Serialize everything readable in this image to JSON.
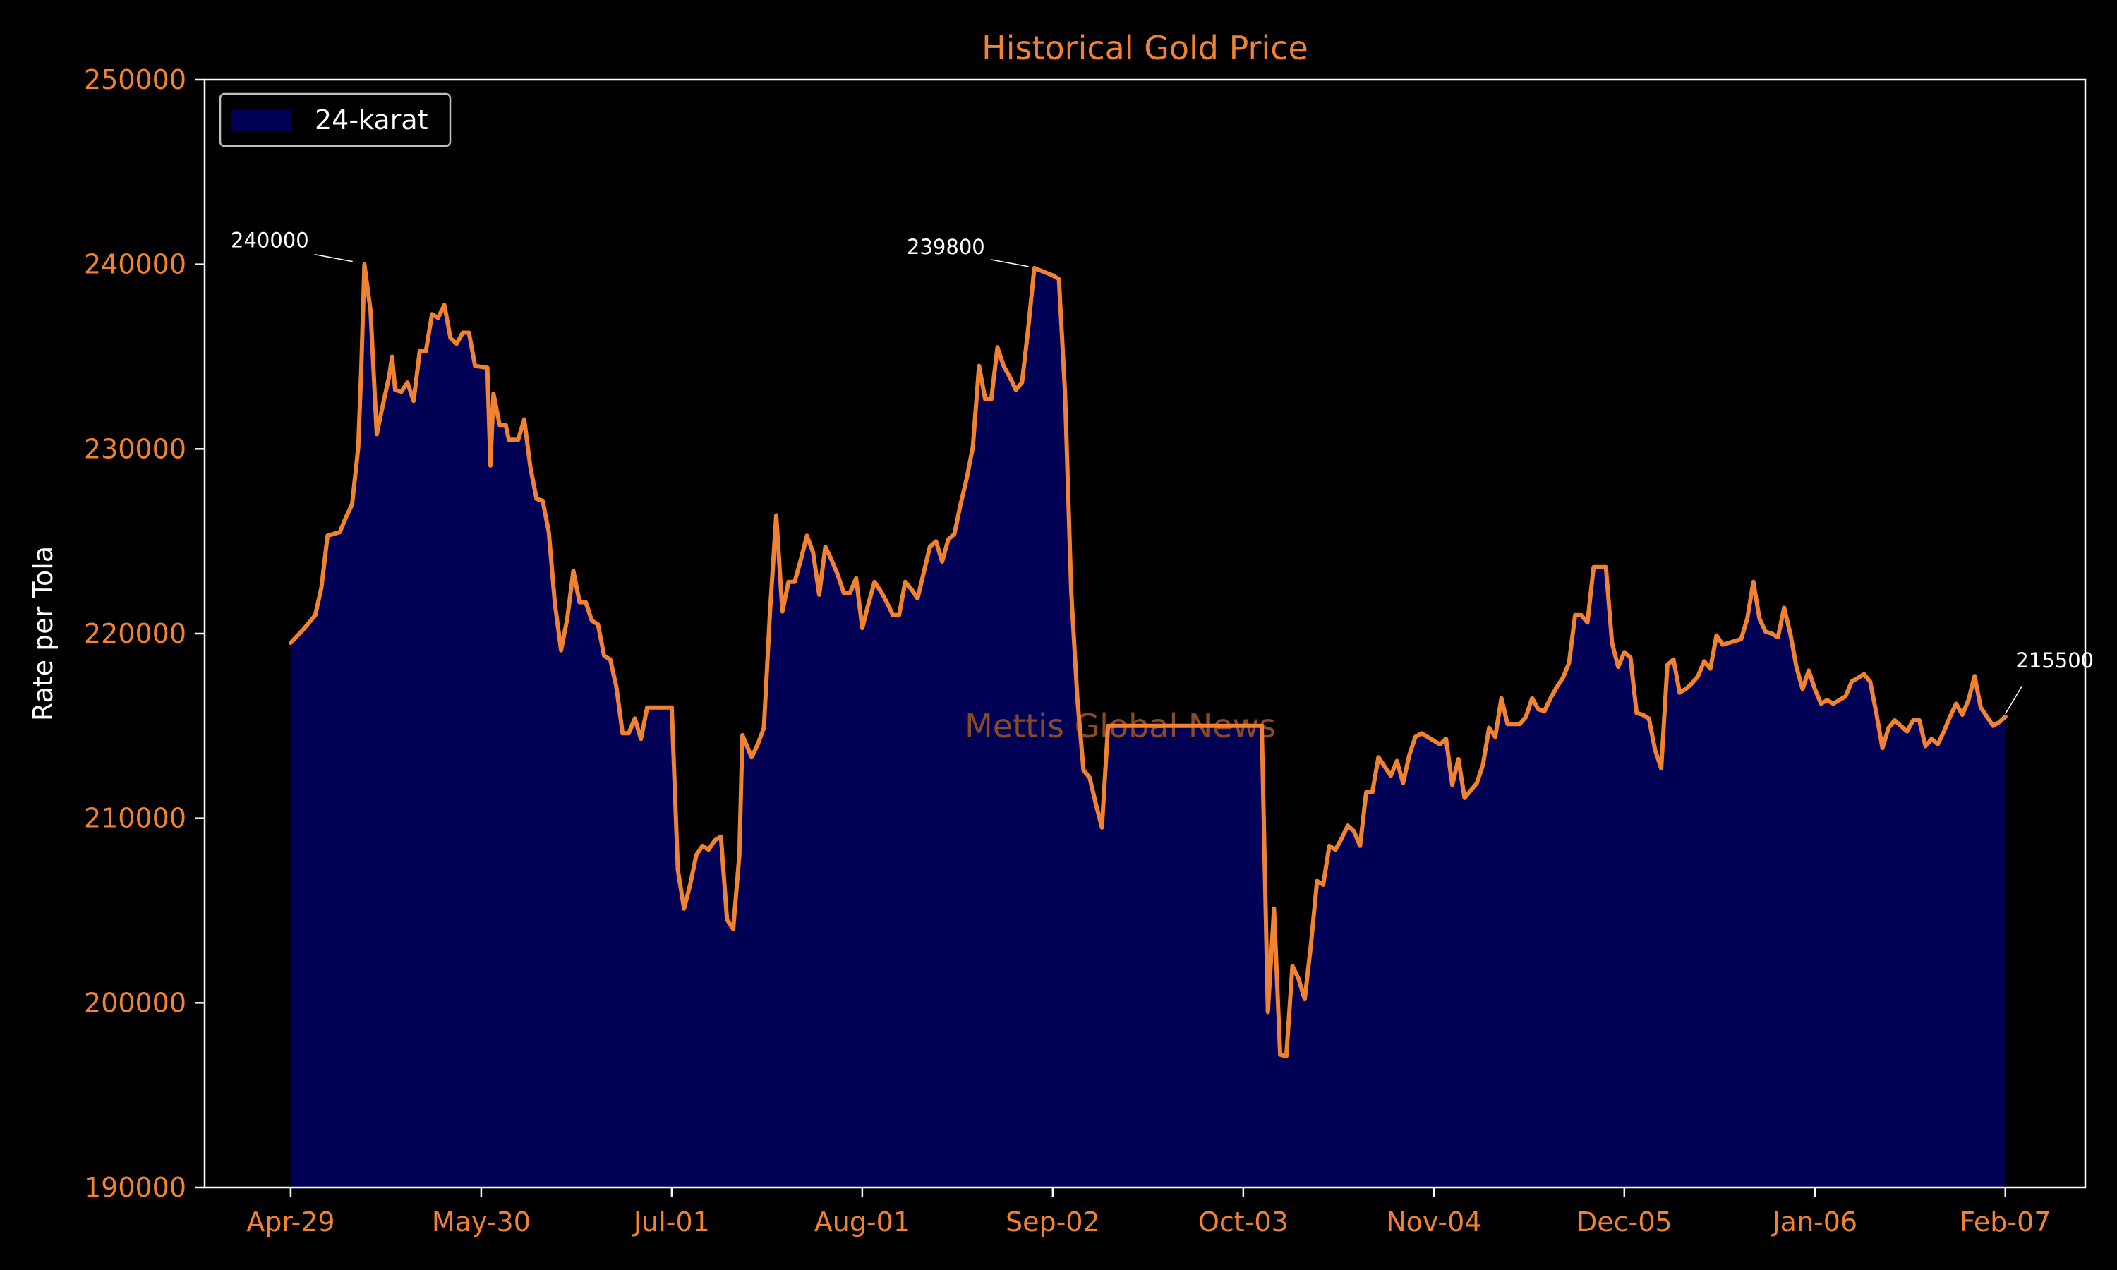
{
  "chart_data": {
    "type": "area",
    "title": "Historical Gold Price",
    "ylabel": "Rate per Tola",
    "xlabel": "",
    "ylim": [
      190000,
      250000
    ],
    "y_ticks": [
      190000,
      200000,
      210000,
      220000,
      230000,
      240000,
      250000
    ],
    "y_tick_labels": [
      "190000",
      "200000",
      "210000",
      "220000",
      "230000",
      "240000",
      "250000"
    ],
    "x_tick_labels": [
      "Apr-29",
      "May-30",
      "Jul-01",
      "Aug-01",
      "Sep-02",
      "Oct-03",
      "Nov-04",
      "Dec-05",
      "Jan-06",
      "Feb-07"
    ],
    "x_tick_positions": [
      0,
      31,
      62,
      93,
      124,
      155,
      186,
      217,
      248,
      279
    ],
    "x_range": [
      -14,
      292
    ],
    "legend": {
      "position": "top-left",
      "label": "24-karat"
    },
    "colors": {
      "line": "#f08232",
      "fill": "#000055",
      "background": "#000000",
      "axes": "#ffffff",
      "text_accent": "#f08232"
    },
    "watermark": "Mettis Global News",
    "annotations": [
      {
        "text": "240000",
        "x": 11,
        "y": 240000
      },
      {
        "text": "239800",
        "x": 121,
        "y": 239800
      },
      {
        "text": "215500",
        "x": 279,
        "y": 215500
      }
    ],
    "series": [
      {
        "name": "24-karat",
        "points": [
          [
            0,
            219500
          ],
          [
            2,
            220200
          ],
          [
            4,
            221000
          ],
          [
            5,
            222500
          ],
          [
            6,
            225300
          ],
          [
            8,
            225500
          ],
          [
            9,
            226300
          ],
          [
            10,
            227000
          ],
          [
            11,
            230100
          ],
          [
            11.5,
            234500
          ],
          [
            12,
            240000
          ],
          [
            13,
            237500
          ],
          [
            14,
            230800
          ],
          [
            15,
            232400
          ],
          [
            16,
            233900
          ],
          [
            16.5,
            235000
          ],
          [
            17,
            233200
          ],
          [
            18,
            233100
          ],
          [
            19,
            233600
          ],
          [
            20,
            232600
          ],
          [
            21,
            235300
          ],
          [
            22,
            235300
          ],
          [
            23,
            237300
          ],
          [
            24,
            237100
          ],
          [
            25,
            237800
          ],
          [
            26,
            236000
          ],
          [
            27,
            235700
          ],
          [
            28,
            236300
          ],
          [
            29,
            236300
          ],
          [
            30,
            234500
          ],
          [
            32,
            234400
          ],
          [
            32.5,
            229100
          ],
          [
            33,
            233000
          ],
          [
            34,
            231300
          ],
          [
            35,
            231300
          ],
          [
            35.5,
            230500
          ],
          [
            37,
            230500
          ],
          [
            38,
            231600
          ],
          [
            39,
            229000
          ],
          [
            40,
            227300
          ],
          [
            41,
            227200
          ],
          [
            42,
            225500
          ],
          [
            43,
            221600
          ],
          [
            44,
            219100
          ],
          [
            45,
            220800
          ],
          [
            46,
            223400
          ],
          [
            47,
            221700
          ],
          [
            48,
            221700
          ],
          [
            49,
            220700
          ],
          [
            50,
            220500
          ],
          [
            51,
            218800
          ],
          [
            52,
            218600
          ],
          [
            53,
            217100
          ],
          [
            54,
            214600
          ],
          [
            55,
            214600
          ],
          [
            56,
            215400
          ],
          [
            57,
            214300
          ],
          [
            58,
            216000
          ],
          [
            59,
            216000
          ],
          [
            60,
            216000
          ],
          [
            61,
            216000
          ],
          [
            62,
            216000
          ],
          [
            63,
            207200
          ],
          [
            64,
            205100
          ],
          [
            65,
            206400
          ],
          [
            66,
            208000
          ],
          [
            67,
            208500
          ],
          [
            68,
            208300
          ],
          [
            69,
            208800
          ],
          [
            70,
            209000
          ],
          [
            71,
            204500
          ],
          [
            72,
            204000
          ],
          [
            73,
            208000
          ],
          [
            73.5,
            214500
          ],
          [
            75,
            213300
          ],
          [
            76,
            214000
          ],
          [
            77,
            214900
          ],
          [
            78,
            221200
          ],
          [
            79,
            226400
          ],
          [
            80,
            221200
          ],
          [
            81,
            222800
          ],
          [
            82,
            222800
          ],
          [
            83,
            224000
          ],
          [
            84,
            225300
          ],
          [
            85,
            224400
          ],
          [
            86,
            222100
          ],
          [
            87,
            224700
          ],
          [
            88,
            224000
          ],
          [
            89,
            223200
          ],
          [
            90,
            222200
          ],
          [
            91,
            222200
          ],
          [
            92,
            223000
          ],
          [
            93,
            220300
          ],
          [
            94,
            221600
          ],
          [
            95,
            222800
          ],
          [
            96,
            222300
          ],
          [
            97,
            221700
          ],
          [
            98,
            221000
          ],
          [
            99,
            221000
          ],
          [
            100,
            222800
          ],
          [
            101,
            222400
          ],
          [
            102,
            221900
          ],
          [
            103,
            223300
          ],
          [
            104,
            224700
          ],
          [
            105,
            225000
          ],
          [
            106,
            223900
          ],
          [
            107,
            225100
          ],
          [
            108,
            225400
          ],
          [
            109,
            227000
          ],
          [
            110,
            228400
          ],
          [
            111,
            230100
          ],
          [
            112,
            234500
          ],
          [
            113,
            232700
          ],
          [
            114,
            232700
          ],
          [
            115,
            235500
          ],
          [
            116,
            234500
          ],
          [
            117,
            233900
          ],
          [
            118,
            233200
          ],
          [
            119,
            233600
          ],
          [
            120,
            236500
          ],
          [
            121,
            239800
          ],
          [
            124,
            239400
          ],
          [
            125,
            239200
          ],
          [
            126,
            233000
          ],
          [
            127,
            222300
          ],
          [
            128,
            216500
          ],
          [
            129,
            212600
          ],
          [
            130,
            212200
          ],
          [
            131,
            210800
          ],
          [
            132,
            209500
          ],
          [
            133,
            215000
          ],
          [
            135,
            215000
          ],
          [
            140,
            215000
          ],
          [
            145,
            215000
          ],
          [
            150,
            215000
          ],
          [
            155,
            215000
          ],
          [
            158,
            215000
          ],
          [
            159,
            199500
          ],
          [
            160,
            205100
          ],
          [
            161,
            197200
          ],
          [
            162,
            197100
          ],
          [
            163,
            202000
          ],
          [
            164,
            201300
          ],
          [
            165,
            200200
          ],
          [
            166,
            203100
          ],
          [
            167,
            206600
          ],
          [
            168,
            206400
          ],
          [
            169,
            208500
          ],
          [
            170,
            208300
          ],
          [
            171,
            208900
          ],
          [
            172,
            209600
          ],
          [
            173,
            209300
          ],
          [
            174,
            208500
          ],
          [
            175,
            211400
          ],
          [
            176,
            211400
          ],
          [
            177,
            213300
          ],
          [
            178,
            212800
          ],
          [
            179,
            212300
          ],
          [
            180,
            213100
          ],
          [
            181,
            211900
          ],
          [
            182,
            213400
          ],
          [
            183,
            214400
          ],
          [
            184,
            214600
          ],
          [
            185,
            214400
          ],
          [
            186,
            214200
          ],
          [
            187,
            214000
          ],
          [
            188,
            214300
          ],
          [
            189,
            211800
          ],
          [
            190,
            213200
          ],
          [
            191,
            211100
          ],
          [
            192,
            211500
          ],
          [
            193,
            211900
          ],
          [
            194,
            212900
          ],
          [
            195,
            214900
          ],
          [
            196,
            214400
          ],
          [
            197,
            216500
          ],
          [
            198,
            215100
          ],
          [
            199,
            215100
          ],
          [
            200,
            215100
          ],
          [
            201,
            215500
          ],
          [
            202,
            216500
          ],
          [
            203,
            215900
          ],
          [
            204,
            215800
          ],
          [
            205,
            216500
          ],
          [
            206,
            217100
          ],
          [
            207,
            217600
          ],
          [
            208,
            218400
          ],
          [
            209,
            221000
          ],
          [
            210,
            221000
          ],
          [
            211,
            220600
          ],
          [
            212,
            223600
          ],
          [
            213,
            223600
          ],
          [
            214,
            223600
          ],
          [
            215,
            219500
          ],
          [
            216,
            218200
          ],
          [
            217,
            219000
          ],
          [
            218,
            218700
          ],
          [
            219,
            215700
          ],
          [
            220,
            215600
          ],
          [
            221,
            215400
          ],
          [
            222,
            213700
          ],
          [
            223,
            212700
          ],
          [
            224,
            218300
          ],
          [
            225,
            218600
          ],
          [
            226,
            216800
          ],
          [
            227,
            217000
          ],
          [
            228,
            217300
          ],
          [
            229,
            217700
          ],
          [
            230,
            218500
          ],
          [
            231,
            218100
          ],
          [
            232,
            219900
          ],
          [
            233,
            219400
          ],
          [
            234,
            219500
          ],
          [
            235,
            219600
          ],
          [
            236,
            219700
          ],
          [
            237,
            220800
          ],
          [
            238,
            222800
          ],
          [
            239,
            220800
          ],
          [
            240,
            220100
          ],
          [
            241,
            220000
          ],
          [
            242,
            219800
          ],
          [
            243,
            221400
          ],
          [
            244,
            220000
          ],
          [
            245,
            218200
          ],
          [
            246,
            217000
          ],
          [
            247,
            218000
          ],
          [
            248,
            217000
          ],
          [
            249,
            216200
          ],
          [
            250,
            216400
          ],
          [
            251,
            216200
          ],
          [
            252,
            216400
          ],
          [
            253,
            216600
          ],
          [
            254,
            217400
          ],
          [
            255,
            217600
          ],
          [
            256,
            217800
          ],
          [
            257,
            217400
          ],
          [
            258,
            215700
          ],
          [
            259,
            213800
          ],
          [
            260,
            214900
          ],
          [
            261,
            215300
          ],
          [
            262,
            215000
          ],
          [
            263,
            214700
          ],
          [
            264,
            215300
          ],
          [
            265,
            215300
          ],
          [
            266,
            213900
          ],
          [
            267,
            214300
          ],
          [
            268,
            214000
          ],
          [
            269,
            214700
          ],
          [
            270,
            215500
          ],
          [
            271,
            216200
          ],
          [
            272,
            215600
          ],
          [
            273,
            216400
          ],
          [
            274,
            217700
          ],
          [
            275,
            216000
          ],
          [
            276,
            215500
          ],
          [
            277,
            215000
          ],
          [
            278,
            215200
          ],
          [
            279,
            215500
          ]
        ]
      }
    ]
  }
}
